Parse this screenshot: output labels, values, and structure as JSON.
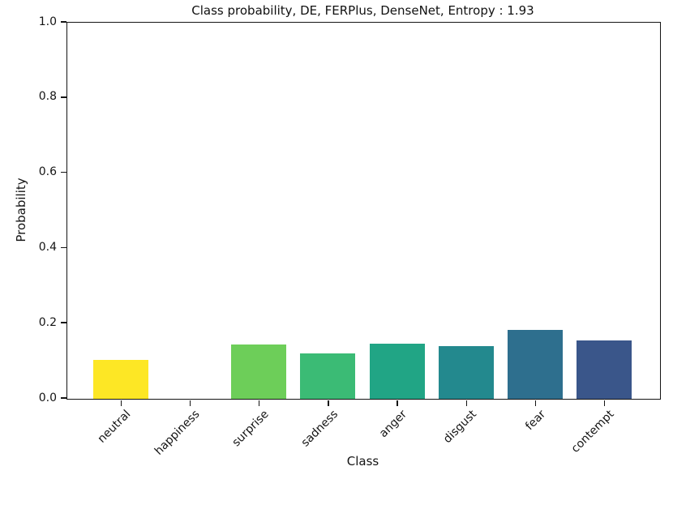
{
  "title": "Class probability, DE, FERPlus, DenseNet, Entropy : 1.93",
  "chart_data": {
    "type": "bar",
    "title": "Class probability, DE, FERPlus, DenseNet, Entropy : 1.93",
    "xlabel": "Class",
    "ylabel": "Probability",
    "categories": [
      "neutral",
      "happiness",
      "surprise",
      "sadness",
      "anger",
      "disgust",
      "fear",
      "contempt"
    ],
    "values": [
      0.103,
      0.0,
      0.144,
      0.12,
      0.147,
      0.14,
      0.183,
      0.155
    ],
    "bar_colors": [
      "#FDE725",
      "#B5DE2B",
      "#6DCE59",
      "#3BBB75",
      "#21A585",
      "#23898E",
      "#2E6F8E",
      "#3A568A"
    ],
    "ylim": [
      0.0,
      1.0
    ],
    "yticks": [
      0.0,
      0.2,
      0.4,
      0.6,
      0.8,
      1.0
    ],
    "ytick_labels": [
      "0.0",
      "0.2",
      "0.4",
      "0.6",
      "0.8",
      "1.0"
    ],
    "x_tick_rotation": 45,
    "grid": false,
    "legend": null,
    "bar_width_fraction": 0.8,
    "entropy": "1.93"
  }
}
